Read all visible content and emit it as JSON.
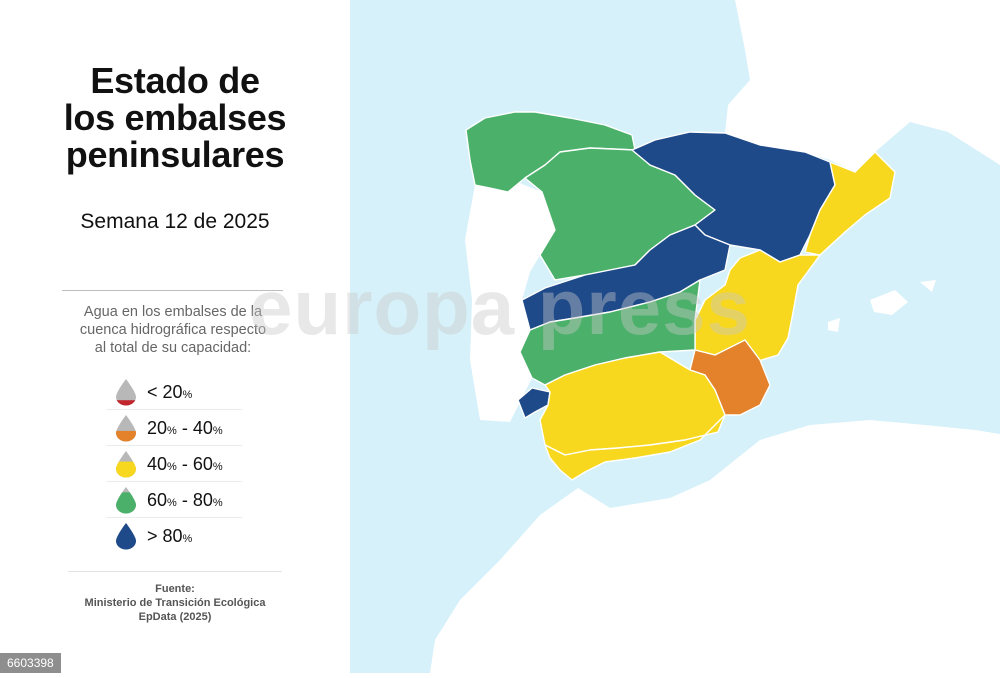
{
  "header": {
    "title_lines": [
      "Estado de",
      "los embalses",
      "peninsulares"
    ],
    "subtitle": "Semana 12 de 2025"
  },
  "legend": {
    "description_lines": [
      "Agua en los embalses de la",
      "cuenca hidrográfica respecto",
      "al total de su capacidad:"
    ],
    "percent_symbol": "%",
    "items": [
      {
        "prefix": "< 20",
        "a": "",
        "sep": "",
        "b": "",
        "fill_level": 0.2,
        "color": "#c0262c"
      },
      {
        "prefix": "",
        "a": "20",
        "sep": " - ",
        "b": "40",
        "fill_level": 0.4,
        "color": "#e3822b"
      },
      {
        "prefix": "",
        "a": "40",
        "sep": " - ",
        "b": "60",
        "fill_level": 0.6,
        "color": "#f8d81f"
      },
      {
        "prefix": "",
        "a": "60",
        "sep": " - ",
        "b": "80",
        "fill_level": 0.8,
        "color": "#4bb06a"
      },
      {
        "prefix": "> 80",
        "a": "",
        "sep": "",
        "b": "",
        "fill_level": 1.0,
        "color": "#1e4a8a"
      }
    ]
  },
  "source": {
    "label": "Fuente:",
    "lines": [
      "Ministerio de Transición Ecológica",
      "EpData (2025)"
    ]
  },
  "map": {
    "colors": {
      "sea": "#d6f1f9",
      "land": "#ffffff",
      "gt80": "#1e4a8a",
      "60_80": "#4bb06a",
      "40_60": "#f8d81f",
      "20_40": "#e3822b"
    },
    "basins_status": {
      "north_west": "60_80",
      "duero": "60_80",
      "ebro": "gt80",
      "tajo": "gt80",
      "guadiana": "60_80",
      "guadalquivir": "40_60",
      "jucar": "40_60",
      "segura": "20_40",
      "cataluna": "40_60",
      "huelva_coast": "gt80",
      "andalusia_med": "40_60"
    }
  },
  "watermark": "europa press",
  "image_id": "6603398"
}
